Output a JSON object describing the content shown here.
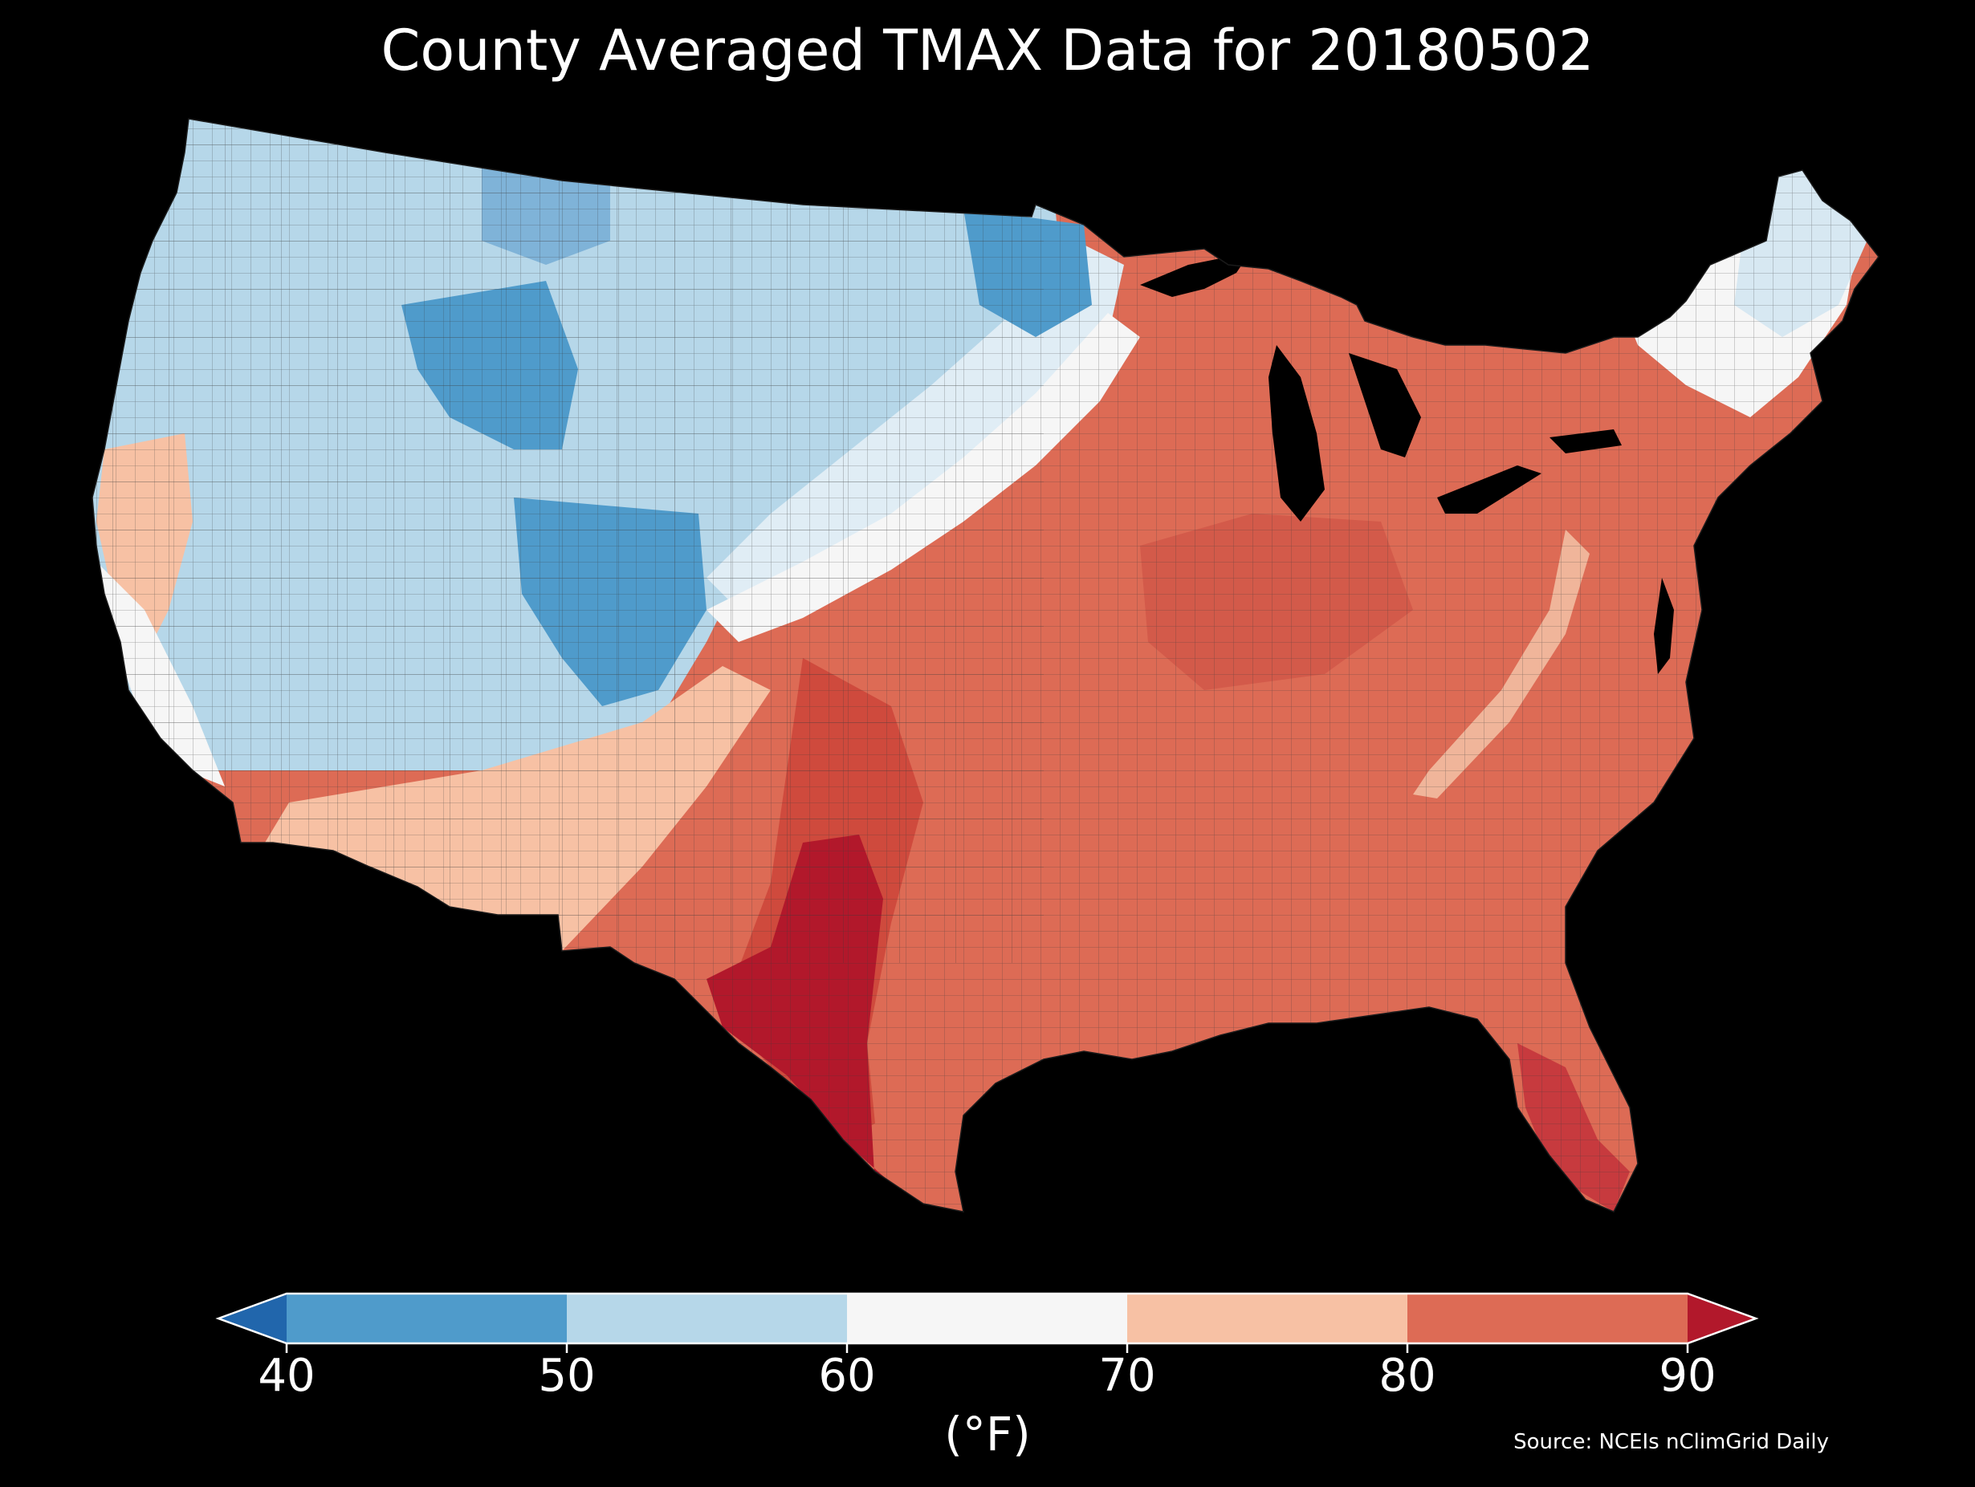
{
  "title": "County Averaged TMAX Data for 20180502",
  "colorbar": {
    "unit_label": "(°F)",
    "ticks": [
      "40",
      "50",
      "60",
      "70",
      "80",
      "90"
    ],
    "bins": [
      {
        "range": "<40",
        "color": "#2166ac"
      },
      {
        "range": "40-50",
        "color": "#4f9bcb"
      },
      {
        "range": "50-60",
        "color": "#b6d7e9"
      },
      {
        "range": "60-70",
        "color": "#f6f6f6"
      },
      {
        "range": "70-80",
        "color": "#f7c1a4"
      },
      {
        "range": "80-90",
        "color": "#dd6b55"
      },
      {
        "range": ">90",
        "color": "#b2182b"
      }
    ]
  },
  "source": "Source: NCEIs nClimGrid Daily",
  "colors": {
    "background": "#000000",
    "text": "#ffffff"
  }
}
